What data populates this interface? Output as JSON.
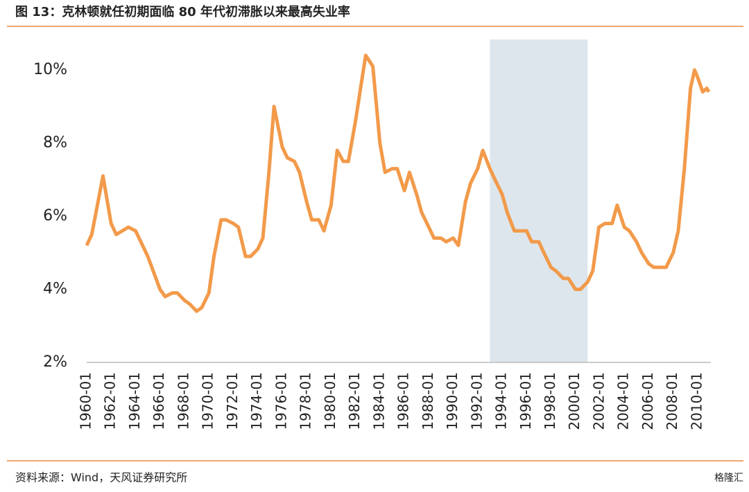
{
  "chart_data": {
    "type": "line",
    "title": "图 13：克林顿就任初期面临 80 年代初滞胀以来最高失业率",
    "source": "资料来源：Wind，天风证券研究所",
    "watermark": "格隆汇",
    "x": [
      "1960-01",
      "1960-06",
      "1961-05",
      "1962-01",
      "1962-06",
      "1963-06",
      "1964-01",
      "1965-01",
      "1966-01",
      "1966-06",
      "1967-01",
      "1967-06",
      "1968-01",
      "1968-06",
      "1969-01",
      "1969-06",
      "1970-01",
      "1970-06",
      "1971-01",
      "1971-06",
      "1972-01",
      "1972-06",
      "1973-01",
      "1973-06",
      "1974-01",
      "1974-06",
      "1974-12",
      "1975-05",
      "1976-01",
      "1976-06",
      "1977-01",
      "1977-06",
      "1978-01",
      "1978-06",
      "1979-01",
      "1979-06",
      "1980-01",
      "1980-07",
      "1981-01",
      "1981-06",
      "1982-01",
      "1982-06",
      "1982-11",
      "1983-06",
      "1984-01",
      "1984-06",
      "1985-01",
      "1985-06",
      "1986-01",
      "1986-06",
      "1987-01",
      "1987-06",
      "1988-01",
      "1988-06",
      "1989-01",
      "1989-06",
      "1990-01",
      "1990-06",
      "1991-01",
      "1991-06",
      "1992-01",
      "1992-06",
      "1993-01",
      "1993-06",
      "1994-01",
      "1994-06",
      "1995-01",
      "1995-06",
      "1996-01",
      "1996-06",
      "1997-01",
      "1997-06",
      "1998-01",
      "1998-06",
      "1999-01",
      "1999-06",
      "2000-01",
      "2000-06",
      "2001-01",
      "2001-06",
      "2001-12",
      "2002-06",
      "2003-01",
      "2003-06",
      "2004-01",
      "2004-06",
      "2005-01",
      "2005-06",
      "2006-01",
      "2006-06",
      "2007-01",
      "2007-06",
      "2008-01",
      "2008-06",
      "2008-12",
      "2009-06",
      "2009-10",
      "2010-01",
      "2010-06",
      "2010-10",
      "2010-12"
    ],
    "series": [
      {
        "name": "失业率",
        "color": "#f29a4a",
        "values": [
          5.2,
          5.5,
          7.1,
          5.8,
          5.5,
          5.7,
          5.6,
          4.9,
          4.0,
          3.8,
          3.9,
          3.9,
          3.7,
          3.6,
          3.4,
          3.5,
          3.9,
          4.9,
          5.9,
          5.9,
          5.8,
          5.7,
          4.9,
          4.9,
          5.1,
          5.4,
          7.2,
          9.0,
          7.9,
          7.6,
          7.5,
          7.2,
          6.4,
          5.9,
          5.9,
          5.6,
          6.3,
          7.8,
          7.5,
          7.5,
          8.6,
          9.5,
          10.4,
          10.1,
          8.0,
          7.2,
          7.3,
          7.3,
          6.7,
          7.2,
          6.6,
          6.1,
          5.7,
          5.4,
          5.4,
          5.3,
          5.4,
          5.2,
          6.4,
          6.9,
          7.3,
          7.8,
          7.3,
          7.0,
          6.6,
          6.1,
          5.6,
          5.6,
          5.6,
          5.3,
          5.3,
          5.0,
          4.6,
          4.5,
          4.3,
          4.3,
          4.0,
          4.0,
          4.2,
          4.5,
          5.7,
          5.8,
          5.8,
          6.3,
          5.7,
          5.6,
          5.3,
          5.0,
          4.7,
          4.6,
          4.6,
          4.6,
          5.0,
          5.6,
          7.3,
          9.5,
          10.0,
          9.8,
          9.4,
          9.5,
          9.4
        ]
      }
    ],
    "shade": [
      "1993-01",
      "2001-01"
    ],
    "xlim": [
      "1960-01",
      "2011-02"
    ],
    "xticks": [
      "1960-01",
      "1962-01",
      "1964-01",
      "1966-01",
      "1968-01",
      "1970-01",
      "1972-01",
      "1974-01",
      "1976-01",
      "1978-01",
      "1980-01",
      "1982-01",
      "1984-01",
      "1986-01",
      "1988-01",
      "1990-01",
      "1992-01",
      "1994-01",
      "1996-01",
      "1998-01",
      "2000-01",
      "2002-01",
      "2004-01",
      "2006-01",
      "2008-01",
      "2010-01"
    ],
    "ylim": [
      2,
      10.5
    ],
    "yticks": [
      {
        "value": 2,
        "label": "2%"
      },
      {
        "value": 4,
        "label": "4%"
      },
      {
        "value": 6,
        "label": "6%"
      },
      {
        "value": 8,
        "label": "8%"
      },
      {
        "value": 10,
        "label": "10%"
      }
    ]
  }
}
